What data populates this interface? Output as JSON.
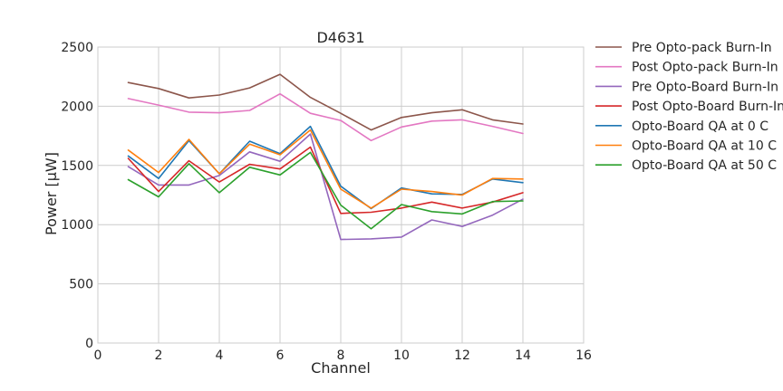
{
  "chart_data": {
    "type": "line",
    "title": "D4631",
    "xlabel": "Channel",
    "ylabel": "Power [μW]",
    "xlim": [
      0,
      16
    ],
    "ylim": [
      0,
      2500
    ],
    "xticks": [
      0,
      2,
      4,
      6,
      8,
      10,
      12,
      14,
      16
    ],
    "yticks": [
      0,
      500,
      1000,
      1500,
      2000,
      2500
    ],
    "grid": true,
    "legend_position": "outside-right-top",
    "x": [
      1,
      2,
      3,
      4,
      5,
      6,
      7,
      8,
      9,
      10,
      11,
      12,
      13,
      14
    ],
    "series": [
      {
        "name": "Pre Opto-pack Burn-In",
        "color": "#8c564b",
        "values": [
          2200,
          2150,
          2070,
          2095,
          2155,
          2270,
          2075,
          1940,
          1800,
          1905,
          1945,
          1970,
          1885,
          1850
        ]
      },
      {
        "name": "Post Opto-pack Burn-In",
        "color": "#e377c2",
        "values": [
          2065,
          2010,
          1950,
          1945,
          1965,
          2105,
          1940,
          1880,
          1710,
          1825,
          1875,
          1885,
          1830,
          1770
        ]
      },
      {
        "name": "Pre Opto-Board Burn-In",
        "color": "#9467bd",
        "values": [
          1490,
          1335,
          1335,
          1415,
          1615,
          1535,
          1765,
          875,
          880,
          895,
          1040,
          985,
          1080,
          1215
        ]
      },
      {
        "name": "Post Opto-Board Burn-In",
        "color": "#d62728",
        "values": [
          1560,
          1280,
          1540,
          1360,
          1510,
          1470,
          1655,
          1095,
          1105,
          1140,
          1190,
          1140,
          1190,
          1270
        ]
      },
      {
        "name": "Opto-Board QA at 0 C",
        "color": "#1f77b4",
        "values": [
          1580,
          1390,
          1710,
          1430,
          1705,
          1600,
          1830,
          1325,
          1135,
          1310,
          1260,
          1255,
          1385,
          1355
        ]
      },
      {
        "name": "Opto-Board QA at 10 C",
        "color": "#ff7f0e",
        "values": [
          1630,
          1440,
          1720,
          1430,
          1680,
          1590,
          1800,
          1300,
          1140,
          1300,
          1280,
          1250,
          1390,
          1385
        ]
      },
      {
        "name": "Opto-Board QA at 50 C",
        "color": "#2ca02c",
        "values": [
          1380,
          1235,
          1515,
          1270,
          1485,
          1420,
          1610,
          1165,
          965,
          1170,
          1110,
          1090,
          1195,
          1200
        ]
      }
    ]
  }
}
